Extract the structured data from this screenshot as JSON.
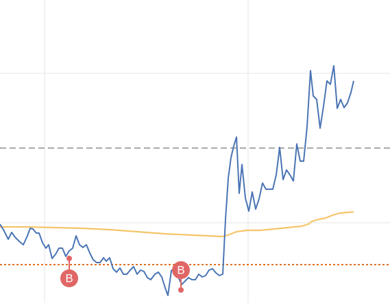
{
  "chart_data": {
    "type": "line",
    "xlim": [
      0,
      569
    ],
    "ylim": [
      0,
      442
    ],
    "xticks": [
      65,
      362
    ],
    "yticks": [
      117,
      335
    ],
    "grid": true,
    "series": [
      {
        "color": "#4a74b4",
        "x": [
          0,
          5,
          12,
          17,
          22,
          28,
          34,
          40,
          44,
          48,
          53,
          57,
          62,
          67,
          71,
          76,
          81,
          86,
          91,
          96,
          101,
          106,
          111,
          116,
          121,
          126,
          131,
          136,
          141,
          146,
          151,
          155,
          160,
          165,
          170,
          175,
          180,
          185,
          190,
          195,
          200,
          205,
          210,
          215,
          220,
          226,
          231,
          236,
          241,
          245,
          250,
          255,
          260,
          265,
          270,
          275,
          280,
          285,
          290,
          295,
          300,
          305,
          310,
          315,
          320,
          325,
          329,
          333,
          337,
          341,
          345,
          349,
          353,
          358,
          363,
          368,
          373,
          378,
          383,
          388,
          393,
          398,
          403,
          408,
          413,
          418,
          423,
          428,
          433,
          438,
          443,
          448,
          453,
          457,
          462,
          467,
          472,
          477,
          482,
          487,
          492,
          497,
          502,
          507,
          512,
          516
        ],
        "values": [
          115,
          107,
          93,
          103,
          96,
          90,
          85,
          98,
          109,
          108,
          102,
          102,
          88,
          80,
          85,
          65,
          71,
          80,
          80,
          68,
          76,
          80,
          98,
          85,
          81,
          85,
          73,
          63,
          59,
          59,
          66,
          61,
          66,
          50,
          45,
          51,
          42,
          42,
          48,
          53,
          42,
          48,
          46,
          37,
          34,
          42,
          45,
          38,
          22,
          11,
          47,
          52,
          38,
          27,
          32,
          37,
          34,
          34,
          42,
          38,
          40,
          48,
          50,
          44,
          40,
          42,
          122,
          182,
          212,
          229,
          242,
          160,
          202,
          153,
          134,
          162,
          137,
          152,
          175,
          166,
          166,
          166,
          187,
          227,
          180,
          194,
          187,
          178,
          232,
          207,
          207,
          257,
          339,
          302,
          297,
          255,
          287,
          324,
          319,
          346,
          284,
          297,
          285,
          292,
          307,
          324
        ]
      },
      {
        "color": "#f5c56a",
        "x": [
          0,
          40,
          80,
          120,
          160,
          200,
          240,
          280,
          325,
          335,
          345,
          360,
          380,
          400,
          420,
          440,
          450,
          455,
          465,
          475,
          485,
          495,
          505,
          516
        ],
        "values": [
          111,
          111,
          110,
          109,
          107,
          104,
          101,
          99,
          97,
          100,
          104,
          106,
          106,
          108,
          110,
          112,
          115,
          119,
          122,
          124,
          128,
          131,
          132,
          133
        ]
      }
    ],
    "reference_lines": [
      {
        "value": 226,
        "color": "#777777",
        "style": "dashed"
      },
      {
        "value": 56,
        "color": "#e07020",
        "style": "dotted"
      }
    ],
    "markers": [
      {
        "x": 101,
        "y": 65,
        "label": "B",
        "position": "below",
        "color": "#e06666"
      },
      {
        "x": 264,
        "y": 19,
        "label": "B",
        "position": "above",
        "color": "#e06666"
      }
    ]
  }
}
